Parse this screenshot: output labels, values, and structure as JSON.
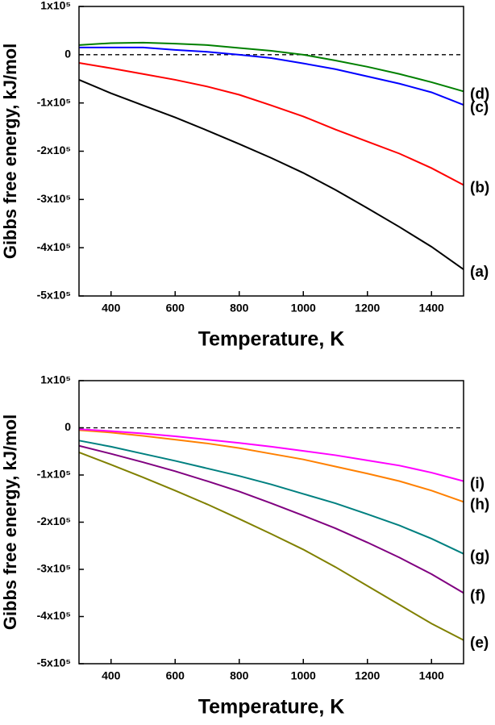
{
  "chart_data": [
    {
      "type": "line",
      "x_label": "Temperature, K",
      "y_label": "Gibbs free energy, kJ/mol",
      "x": [
        300,
        400,
        500,
        600,
        700,
        800,
        900,
        1000,
        1100,
        1200,
        1300,
        1400,
        1500
      ],
      "xlim": [
        300,
        1500
      ],
      "xticks": [
        400,
        600,
        800,
        1000,
        1200,
        1400
      ],
      "ylim": [
        -500000,
        100000
      ],
      "yticks": [
        {
          "value": -500000,
          "label": "-5x10⁵"
        },
        {
          "value": -400000,
          "label": "-4x10⁵"
        },
        {
          "value": -300000,
          "label": "-3x10⁵"
        },
        {
          "value": -200000,
          "label": "-2x10⁵"
        },
        {
          "value": -100000,
          "label": "-1x10⁵"
        },
        0,
        {
          "value": 100000,
          "label": "1x10⁵"
        }
      ],
      "hline": 0,
      "series": [
        {
          "name": "(a)",
          "color": "#000000",
          "values": [
            -52000,
            -80000,
            -105000,
            -130000,
            -157000,
            -185000,
            -214000,
            -245000,
            -280000,
            -318000,
            -357000,
            -398000,
            -445000
          ]
        },
        {
          "name": "(b)",
          "color": "#ff0000",
          "values": [
            -17000,
            -28000,
            -40000,
            -52000,
            -66000,
            -83000,
            -105000,
            -128000,
            -155000,
            -180000,
            -205000,
            -235000,
            -270000
          ]
        },
        {
          "name": "(c)",
          "color": "#0000ff",
          "values": [
            15000,
            15000,
            15000,
            10000,
            6000,
            0,
            -7000,
            -18000,
            -30000,
            -45000,
            -60000,
            -78000,
            -104000
          ]
        },
        {
          "name": "(d)",
          "color": "#008000",
          "values": [
            20000,
            24000,
            25000,
            23000,
            20000,
            14000,
            8000,
            0,
            -12000,
            -25000,
            -40000,
            -57000,
            -76000
          ]
        }
      ]
    },
    {
      "type": "line",
      "x_label": "Temperature, K",
      "y_label": "Gibbs free energy, kJ/mol",
      "x": [
        300,
        400,
        500,
        600,
        700,
        800,
        900,
        1000,
        1100,
        1200,
        1300,
        1400,
        1500
      ],
      "xlim": [
        300,
        1500
      ],
      "xticks": [
        400,
        600,
        800,
        1000,
        1200,
        1400
      ],
      "ylim": [
        -500000,
        100000
      ],
      "yticks": [
        {
          "value": -500000,
          "label": "-5x10⁵"
        },
        {
          "value": -400000,
          "label": "-4x10⁵"
        },
        {
          "value": -300000,
          "label": "-3x10⁵"
        },
        {
          "value": -200000,
          "label": "-2x10⁵"
        },
        {
          "value": -100000,
          "label": "-1x10⁵"
        },
        0,
        {
          "value": 100000,
          "label": "1x10⁵"
        }
      ],
      "hline": 0,
      "series": [
        {
          "name": "(e)",
          "color": "#808000",
          "values": [
            -52000,
            -78000,
            -105000,
            -133000,
            -162000,
            -193000,
            -225000,
            -258000,
            -295000,
            -335000,
            -375000,
            -415000,
            -450000
          ]
        },
        {
          "name": "(f)",
          "color": "#800080",
          "values": [
            -38000,
            -55000,
            -73000,
            -92000,
            -113000,
            -135000,
            -160000,
            -186000,
            -213000,
            -243000,
            -275000,
            -310000,
            -350000
          ]
        },
        {
          "name": "(g)",
          "color": "#008080",
          "values": [
            -27000,
            -40000,
            -55000,
            -70000,
            -86000,
            -102000,
            -120000,
            -140000,
            -160000,
            -183000,
            -207000,
            -235000,
            -267000
          ]
        },
        {
          "name": "(h)",
          "color": "#ff8000",
          "values": [
            -5000,
            -10000,
            -17000,
            -25000,
            -33000,
            -43000,
            -55000,
            -67000,
            -82000,
            -97000,
            -113000,
            -133000,
            -157000
          ]
        },
        {
          "name": "(i)",
          "color": "#ff00ff",
          "values": [
            -3000,
            -7000,
            -12000,
            -18000,
            -25000,
            -32000,
            -40000,
            -49000,
            -58000,
            -69000,
            -80000,
            -95000,
            -113000
          ]
        }
      ]
    }
  ]
}
